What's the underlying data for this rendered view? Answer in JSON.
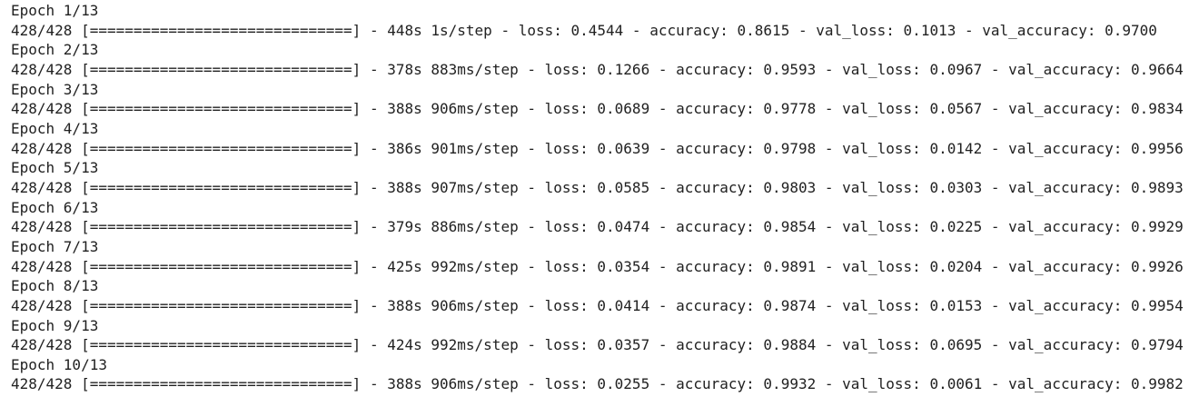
{
  "epochs": [
    {
      "header": "Epoch 1/13",
      "progress": "428/428 [==============================] - 448s 1s/step - loss: 0.4544 - accuracy: 0.8615 - val_loss: 0.1013 - val_accuracy: 0.9700"
    },
    {
      "header": "Epoch 2/13",
      "progress": "428/428 [==============================] - 378s 883ms/step - loss: 0.1266 - accuracy: 0.9593 - val_loss: 0.0967 - val_accuracy: 0.9664"
    },
    {
      "header": "Epoch 3/13",
      "progress": "428/428 [==============================] - 388s 906ms/step - loss: 0.0689 - accuracy: 0.9778 - val_loss: 0.0567 - val_accuracy: 0.9834"
    },
    {
      "header": "Epoch 4/13",
      "progress": "428/428 [==============================] - 386s 901ms/step - loss: 0.0639 - accuracy: 0.9798 - val_loss: 0.0142 - val_accuracy: 0.9956"
    },
    {
      "header": "Epoch 5/13",
      "progress": "428/428 [==============================] - 388s 907ms/step - loss: 0.0585 - accuracy: 0.9803 - val_loss: 0.0303 - val_accuracy: 0.9893"
    },
    {
      "header": "Epoch 6/13",
      "progress": "428/428 [==============================] - 379s 886ms/step - loss: 0.0474 - accuracy: 0.9854 - val_loss: 0.0225 - val_accuracy: 0.9929"
    },
    {
      "header": "Epoch 7/13",
      "progress": "428/428 [==============================] - 425s 992ms/step - loss: 0.0354 - accuracy: 0.9891 - val_loss: 0.0204 - val_accuracy: 0.9926"
    },
    {
      "header": "Epoch 8/13",
      "progress": "428/428 [==============================] - 388s 906ms/step - loss: 0.0414 - accuracy: 0.9874 - val_loss: 0.0153 - val_accuracy: 0.9954"
    },
    {
      "header": "Epoch 9/13",
      "progress": "428/428 [==============================] - 424s 992ms/step - loss: 0.0357 - accuracy: 0.9884 - val_loss: 0.0695 - val_accuracy: 0.9794"
    },
    {
      "header": "Epoch 10/13",
      "progress": "428/428 [==============================] - 388s 906ms/step - loss: 0.0255 - accuracy: 0.9932 - val_loss: 0.0061 - val_accuracy: 0.9982"
    }
  ]
}
